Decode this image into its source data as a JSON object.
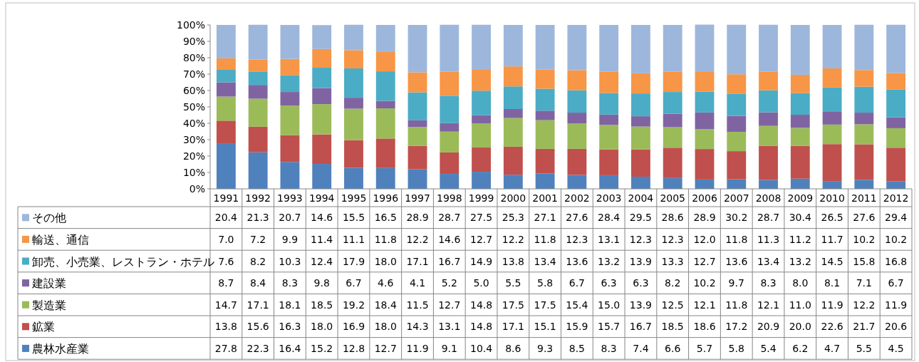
{
  "chart_data": {
    "type": "bar",
    "stacked": true,
    "legend": "left",
    "grid": false,
    "categories": [
      "1991",
      "1992",
      "1993",
      "1994",
      "1995",
      "1996",
      "1997",
      "1998",
      "1999",
      "2000",
      "2001",
      "2002",
      "2003",
      "2004",
      "2005",
      "2006",
      "2007",
      "2008",
      "2009",
      "2010",
      "2011",
      "2012"
    ],
    "ylim": [
      0,
      100
    ],
    "yticks": [
      {
        "value": 0,
        "label": "0%"
      },
      {
        "value": 10,
        "label": "10%"
      },
      {
        "value": 20,
        "label": "20%"
      },
      {
        "value": 30,
        "label": "30%"
      },
      {
        "value": 40,
        "label": "40%"
      },
      {
        "value": 50,
        "label": "50%"
      },
      {
        "value": 60,
        "label": "60%"
      },
      {
        "value": 70,
        "label": "70%"
      },
      {
        "value": 80,
        "label": "80%"
      },
      {
        "value": 90,
        "label": "90%"
      },
      {
        "value": 100,
        "label": "100%"
      }
    ],
    "series": [
      {
        "name": "農林水産業",
        "color": "#4f81bd",
        "values": [
          27.8,
          22.3,
          16.4,
          15.2,
          12.8,
          12.7,
          11.9,
          9.1,
          10.4,
          8.6,
          9.3,
          8.5,
          8.3,
          7.4,
          6.6,
          5.7,
          5.8,
          5.4,
          6.2,
          4.7,
          5.5,
          4.5
        ],
        "value_labels": [
          "27.8",
          "22.3",
          "16.4",
          "15.2",
          "12.8",
          "12.7",
          "11.9",
          "9.1",
          "10.4",
          "8.6",
          "9.3",
          "8.5",
          "8.3",
          "7.4",
          "6.6",
          "5.7",
          "5.8",
          "5.4",
          "6.2",
          "4.7",
          "5.5",
          "4.5"
        ]
      },
      {
        "name": "鉱業",
        "color": "#c0504d",
        "values": [
          13.8,
          15.6,
          16.3,
          18.0,
          16.9,
          18.0,
          14.3,
          13.1,
          14.8,
          17.1,
          15.1,
          15.9,
          15.7,
          16.7,
          18.5,
          18.6,
          17.2,
          20.9,
          20.0,
          22.6,
          21.7,
          20.6
        ],
        "value_labels": [
          "13.8",
          "15.6",
          "16.3",
          "18.0",
          "16.9",
          "18.0",
          "14.3",
          "13.1",
          "14.8",
          "17.1",
          "15.1",
          "15.9",
          "15.7",
          "16.7",
          "18.5",
          "18.6",
          "17.2",
          "20.9",
          "20.0",
          "22.6",
          "21.7",
          "20.6"
        ]
      },
      {
        "name": "製造業",
        "color": "#9bbb59",
        "values": [
          14.7,
          17.1,
          18.1,
          18.5,
          19.2,
          18.4,
          11.5,
          12.7,
          14.8,
          17.5,
          17.5,
          15.4,
          15.0,
          13.9,
          12.5,
          12.1,
          11.8,
          12.1,
          11.0,
          11.9,
          12.2,
          11.9
        ],
        "value_labels": [
          "14.7",
          "17.1",
          "18.1",
          "18.5",
          "19.2",
          "18.4",
          "11.5",
          "12.7",
          "14.8",
          "17.5",
          "17.5",
          "15.4",
          "15.0",
          "13.9",
          "12.5",
          "12.1",
          "11.8",
          "12.1",
          "11.0",
          "11.9",
          "12.2",
          "11.9"
        ]
      },
      {
        "name": "建設業",
        "color": "#8064a2",
        "values": [
          8.7,
          8.4,
          8.3,
          9.8,
          6.7,
          4.6,
          4.1,
          5.2,
          5.0,
          5.5,
          5.8,
          6.7,
          6.3,
          6.3,
          8.2,
          10.2,
          9.7,
          8.3,
          8.0,
          8.1,
          7.1,
          6.7
        ],
        "value_labels": [
          "8.7",
          "8.4",
          "8.3",
          "9.8",
          "6.7",
          "4.6",
          "4.1",
          "5.2",
          "5.0",
          "5.5",
          "5.8",
          "6.7",
          "6.3",
          "6.3",
          "8.2",
          "10.2",
          "9.7",
          "8.3",
          "8.0",
          "8.1",
          "7.1",
          "6.7"
        ]
      },
      {
        "name": "卸売、小売業、レストラン・ホテル",
        "color": "#4bacc6",
        "values": [
          7.6,
          8.2,
          10.3,
          12.4,
          17.9,
          18.0,
          17.1,
          16.7,
          14.9,
          13.8,
          13.4,
          13.6,
          13.2,
          13.9,
          13.3,
          12.7,
          13.6,
          13.4,
          13.2,
          14.5,
          15.8,
          16.8
        ],
        "value_labels": [
          "7.6",
          "8.2",
          "10.3",
          "12.4",
          "17.9",
          "18.0",
          "17.1",
          "16.7",
          "14.9",
          "13.8",
          "13.4",
          "13.6",
          "13.2",
          "13.9",
          "13.3",
          "12.7",
          "13.6",
          "13.4",
          "13.2",
          "14.5",
          "15.8",
          "16.8"
        ]
      },
      {
        "name": "輸送、通信",
        "color": "#f79646",
        "values": [
          7.0,
          7.2,
          9.9,
          11.4,
          11.1,
          11.8,
          12.2,
          14.6,
          12.7,
          12.2,
          11.8,
          12.3,
          13.1,
          12.3,
          12.3,
          12.0,
          11.8,
          11.3,
          11.2,
          11.7,
          10.2,
          10.2
        ],
        "value_labels": [
          "7.0",
          "7.2",
          "9.9",
          "11.4",
          "11.1",
          "11.8",
          "12.2",
          "14.6",
          "12.7",
          "12.2",
          "11.8",
          "12.3",
          "13.1",
          "12.3",
          "12.3",
          "12.0",
          "11.8",
          "11.3",
          "11.2",
          "11.7",
          "10.2",
          "10.2"
        ]
      },
      {
        "name": "その他",
        "color": "#9db7dc",
        "values": [
          20.4,
          21.3,
          20.7,
          14.6,
          15.5,
          16.5,
          28.9,
          28.7,
          27.5,
          25.3,
          27.1,
          27.6,
          28.4,
          29.5,
          28.6,
          28.9,
          30.2,
          28.7,
          30.4,
          26.5,
          27.6,
          29.4
        ],
        "value_labels": [
          "20.4",
          "21.3",
          "20.7",
          "14.6",
          "15.5",
          "16.5",
          "28.9",
          "28.7",
          "27.5",
          "25.3",
          "27.1",
          "27.6",
          "28.4",
          "29.5",
          "28.6",
          "28.9",
          "30.2",
          "28.7",
          "30.4",
          "26.5",
          "27.6",
          "29.4"
        ]
      }
    ]
  }
}
